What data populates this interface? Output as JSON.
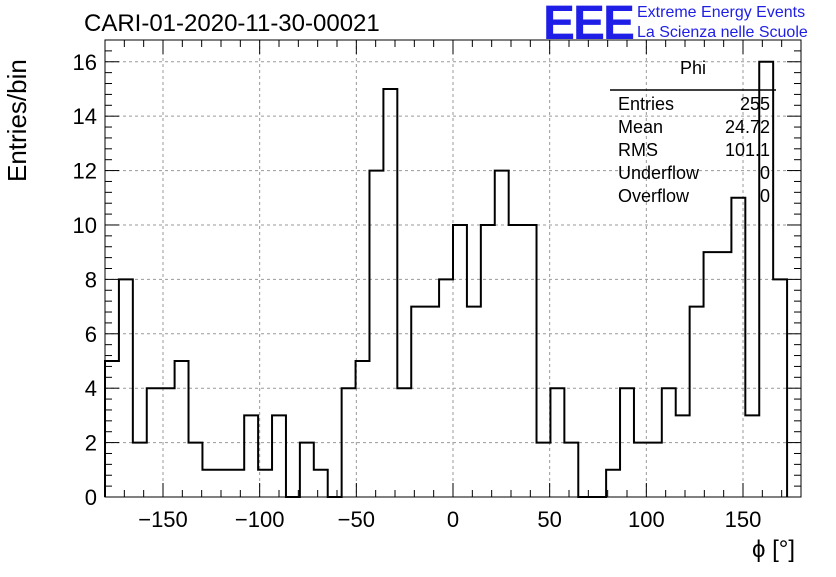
{
  "header": {
    "title": "CARI-01-2020-11-30-00021",
    "brand_logo": "EEE",
    "brand_line1": "Extreme Energy Events",
    "brand_line2": "La Scienza nelle Scuole"
  },
  "chart_data": {
    "type": "histogram",
    "xlabel": "ϕ [°]",
    "ylabel": "Entries/bin",
    "xlim": [
      -180,
      180
    ],
    "ylim": [
      0,
      16.8
    ],
    "grid": true,
    "bin_width": 7.2,
    "xticks": [
      -150,
      -100,
      -50,
      0,
      50,
      100,
      150
    ],
    "yticks": [
      0,
      2,
      4,
      6,
      8,
      10,
      12,
      14,
      16
    ],
    "bin_start": -180,
    "values": [
      5,
      8,
      2,
      4,
      4,
      5,
      2,
      1,
      1,
      1,
      3,
      1,
      3,
      0,
      2,
      1,
      0,
      4,
      5,
      12,
      15,
      4,
      7,
      7,
      8,
      10,
      7,
      10,
      12,
      10,
      10,
      2,
      4,
      2,
      0,
      0,
      1,
      4,
      2,
      2,
      4,
      3,
      7,
      9,
      9,
      11,
      3,
      16,
      8
    ],
    "stats": {
      "title": "Phi",
      "rows": [
        {
          "label": "Entries",
          "value": "255"
        },
        {
          "label": "Mean",
          "value": "24.72"
        },
        {
          "label": "RMS",
          "value": "101.1"
        },
        {
          "label": "Underflow",
          "value": "0"
        },
        {
          "label": "Overflow",
          "value": "0"
        }
      ]
    }
  }
}
